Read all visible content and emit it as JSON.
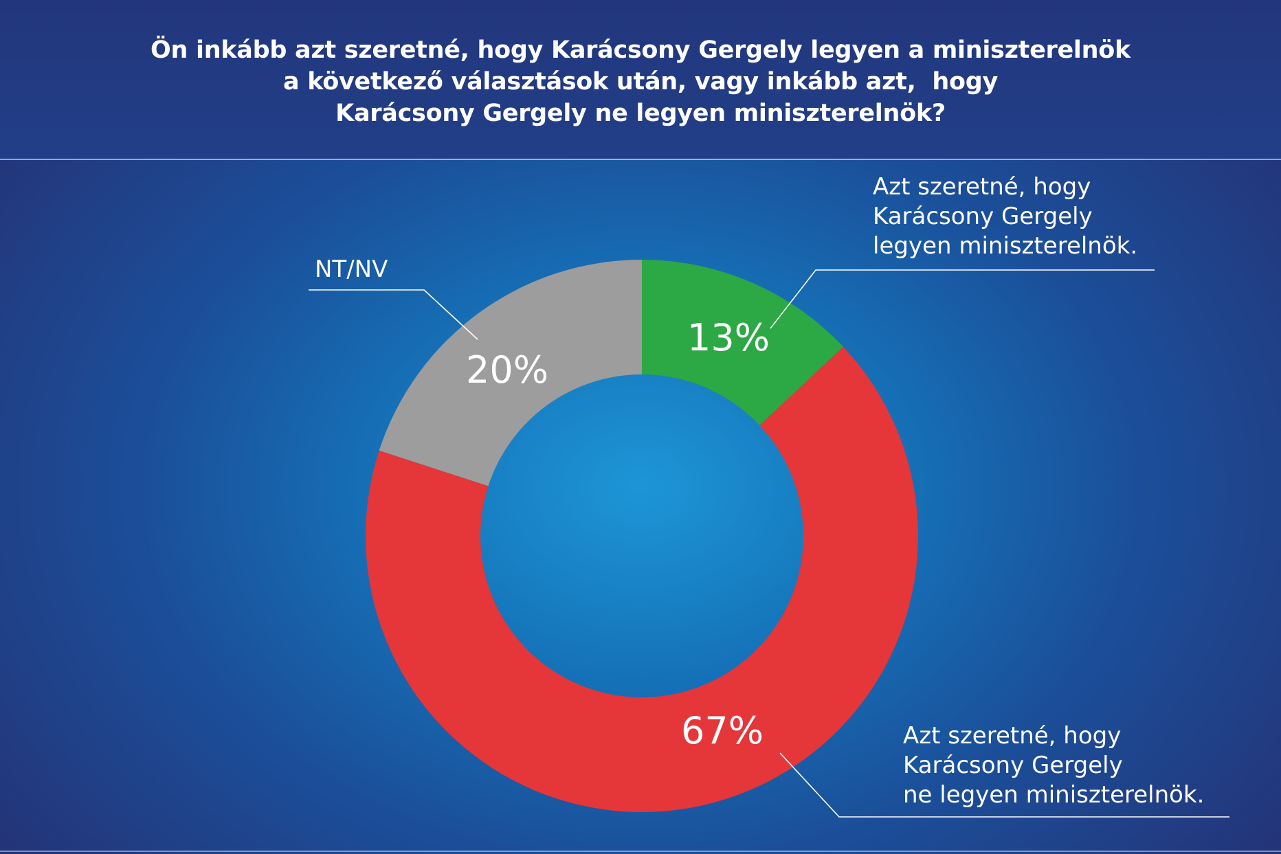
{
  "title_lines": [
    "Ön inkább azt szeretné, hogy Karácsony Gergely legyen a miniszterelnök",
    "a következő választások után, vagy inkább azt,  hogy",
    "Karácsony Gergely ne legyen miniszterelnök?"
  ],
  "chart_data": {
    "type": "pie",
    "title": "Ön inkább azt szeretné, hogy Karácsony Gergely legyen a miniszterelnök a következő választások után, vagy inkább azt,  hogy Karácsony Gergely ne legyen miniszterelnök?",
    "donut": true,
    "slices": [
      {
        "label_lines": [
          "Azt szeretné, hogy",
          "Karácsony Gergely",
          "legyen miniszterelnök."
        ],
        "value": 13,
        "value_label": "13%",
        "color": "#2ca844"
      },
      {
        "label_lines": [
          "Azt szeretné, hogy",
          "Karácsony Gergely",
          "ne legyen miniszterelnök."
        ],
        "value": 67,
        "value_label": "67%",
        "color": "#e5363a"
      },
      {
        "label_lines": [
          "NT/NV"
        ],
        "value": 20,
        "value_label": "20%",
        "color": "#9d9d9d"
      }
    ]
  }
}
